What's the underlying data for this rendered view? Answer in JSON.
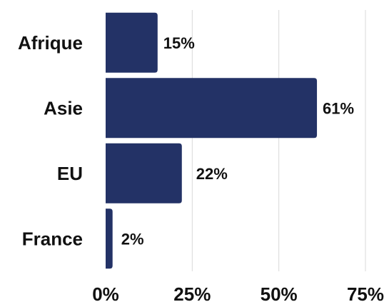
{
  "chart_data": {
    "type": "bar",
    "orientation": "horizontal",
    "categories": [
      "Afrique",
      "Asie",
      "EU",
      "France"
    ],
    "values": [
      15,
      61,
      22,
      2
    ],
    "value_labels": [
      "15%",
      "61%",
      "22%",
      "2%"
    ],
    "xlim": [
      0,
      75
    ],
    "x_ticks": [
      0,
      25,
      50,
      75
    ],
    "x_tick_labels": [
      "0%",
      "25%",
      "50%",
      "75%"
    ],
    "grid": true,
    "bar_color": "#233266"
  }
}
